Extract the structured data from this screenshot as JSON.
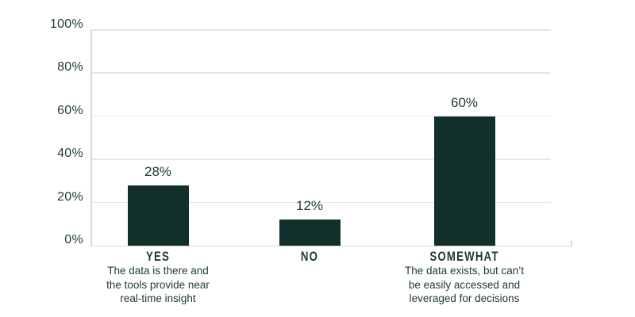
{
  "chart_data": {
    "type": "bar",
    "title": "",
    "xlabel": "",
    "ylabel": "",
    "ylim": [
      0,
      100
    ],
    "grid": true,
    "categories": [
      "YES",
      "NO",
      "SOMEWHAT"
    ],
    "values": [
      28,
      12,
      60
    ],
    "value_labels": [
      "28%",
      "12%",
      "60%"
    ],
    "descriptions": [
      [
        "The data is there and",
        "the tools provide near",
        "real-time insight"
      ],
      [],
      [
        "The data exists, but can’t",
        "be easily accessed and",
        "leveraged for decisions"
      ]
    ],
    "y_ticks": [
      {
        "value": 0,
        "label": "0%"
      },
      {
        "value": 20,
        "label": "20%"
      },
      {
        "value": 40,
        "label": "40%"
      },
      {
        "value": 60,
        "label": "60%"
      },
      {
        "value": 80,
        "label": "80%"
      },
      {
        "value": 100,
        "label": "100%"
      }
    ],
    "bar_color": "#11302b",
    "grid_color": "#eae5de",
    "axis_color": "#ddd7cc",
    "text_color": "#1d3a37"
  }
}
